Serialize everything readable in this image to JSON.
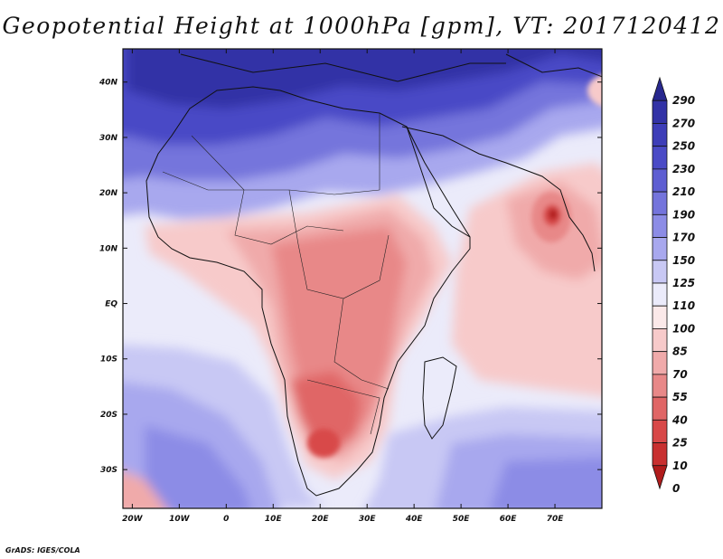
{
  "title": "Geopotential Height at 1000hPa [gpm], VT: 2017120412",
  "credit": "GrADS: IGES/COLA",
  "map": {
    "lon_range": [
      -22,
      80
    ],
    "lat_range": [
      -37,
      46
    ],
    "lon_ticks": [
      {
        "value": -20,
        "label": "20W"
      },
      {
        "value": -10,
        "label": "10W"
      },
      {
        "value": 0,
        "label": "0"
      },
      {
        "value": 10,
        "label": "10E"
      },
      {
        "value": 20,
        "label": "20E"
      },
      {
        "value": 30,
        "label": "30E"
      },
      {
        "value": 40,
        "label": "40E"
      },
      {
        "value": 50,
        "label": "50E"
      },
      {
        "value": 60,
        "label": "60E"
      },
      {
        "value": 70,
        "label": "70E"
      }
    ],
    "lat_ticks": [
      {
        "value": 40,
        "label": "40N"
      },
      {
        "value": 30,
        "label": "30N"
      },
      {
        "value": 20,
        "label": "20N"
      },
      {
        "value": 10,
        "label": "10N"
      },
      {
        "value": 0,
        "label": "EQ"
      },
      {
        "value": -10,
        "label": "10S"
      },
      {
        "value": -20,
        "label": "20S"
      },
      {
        "value": -30,
        "label": "30S"
      }
    ]
  },
  "colorbar": {
    "levels": [
      {
        "label": "290",
        "color": "#28288e"
      },
      {
        "label": "270",
        "color": "#3232a6"
      },
      {
        "label": "250",
        "color": "#3d3db8"
      },
      {
        "label": "230",
        "color": "#4a4ac6"
      },
      {
        "label": "210",
        "color": "#5e5ed2"
      },
      {
        "label": "190",
        "color": "#7474dc"
      },
      {
        "label": "170",
        "color": "#8c8ce6"
      },
      {
        "label": "150",
        "color": "#a8a8ee"
      },
      {
        "label": "125",
        "color": "#c8c8f4"
      },
      {
        "label": "110",
        "color": "#ebebfa"
      },
      {
        "label": "100",
        "color": "#fbe9e9"
      },
      {
        "label": "85",
        "color": "#f7caca"
      },
      {
        "label": "70",
        "color": "#f0aaaa"
      },
      {
        "label": "55",
        "color": "#e88888"
      },
      {
        "label": "40",
        "color": "#e06666"
      },
      {
        "label": "25",
        "color": "#d84848"
      },
      {
        "label": "10",
        "color": "#c83030"
      },
      {
        "label": "0",
        "color": "#b01c1c"
      }
    ]
  }
}
